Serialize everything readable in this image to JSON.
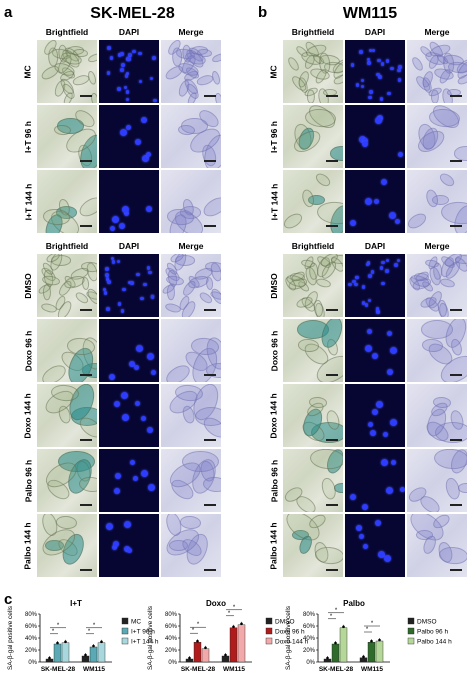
{
  "panels": {
    "a": {
      "letter": "a",
      "title": "SK-MEL-28"
    },
    "b": {
      "letter": "b",
      "title": "WM115"
    },
    "c": {
      "letter": "c"
    }
  },
  "columns": [
    "Brightfield",
    "DAPI",
    "Merge"
  ],
  "top_rows": [
    "MC",
    "I+T 96 h",
    "I+T 144 h"
  ],
  "bottom_rows": [
    "DMSO",
    "Doxo 96 h",
    "Doxo 144 h",
    "Palbo 96 h",
    "Palbo 144 h"
  ],
  "colors": {
    "dapi_bg": "#070633",
    "nucleus": "#2d3cff",
    "mc": "#222222",
    "it96": "#5aa9b5",
    "it144": "#a8d8dd",
    "doxo96": "#b01c1c",
    "doxo144": "#f2a9a9",
    "palbo96": "#2f6b2a",
    "palbo144": "#b6d79a"
  },
  "chart_data": [
    {
      "type": "bar",
      "title": "I+T",
      "ylabel": "SA-β-gal positive cells",
      "ylim": [
        0,
        80
      ],
      "yticks": [
        "0%",
        "20%",
        "40%",
        "60%",
        "80%"
      ],
      "categories": [
        "SK-MEL-28",
        "WM115"
      ],
      "series": [
        {
          "name": "MC",
          "values": [
            5,
            10
          ]
        },
        {
          "name": "I+T 96 h",
          "values": [
            30,
            25
          ]
        },
        {
          "name": "I+T 144 h",
          "values": [
            32,
            32
          ]
        }
      ],
      "significance": [
        "*",
        "*",
        "*",
        "*"
      ]
    },
    {
      "type": "bar",
      "title": "Doxo",
      "ylabel": "SA-β-gal positive cells",
      "ylim": [
        0,
        80
      ],
      "yticks": [
        "0%",
        "20%",
        "40%",
        "60%",
        "80%"
      ],
      "categories": [
        "SK-MEL-28",
        "WM115"
      ],
      "series": [
        {
          "name": "DMSO",
          "values": [
            5,
            10
          ]
        },
        {
          "name": "Doxo 96 h",
          "values": [
            33,
            57
          ]
        },
        {
          "name": "Doxo 144 h",
          "values": [
            22,
            62
          ]
        }
      ],
      "significance": [
        "*",
        "*",
        "*",
        "*"
      ]
    },
    {
      "type": "bar",
      "title": "Palbo",
      "ylabel": "SA-β-gal positive cells",
      "ylim": [
        0,
        80
      ],
      "yticks": [
        "0%",
        "20%",
        "40%",
        "60%",
        "80%"
      ],
      "categories": [
        "SK-MEL-28",
        "WM115"
      ],
      "series": [
        {
          "name": "DMSO",
          "values": [
            5,
            7
          ]
        },
        {
          "name": "Palbo 96 h",
          "values": [
            30,
            33
          ]
        },
        {
          "name": "Palbo 144 h",
          "values": [
            57,
            35
          ]
        }
      ],
      "significance": [
        "*",
        "*",
        "*",
        "*"
      ]
    }
  ]
}
